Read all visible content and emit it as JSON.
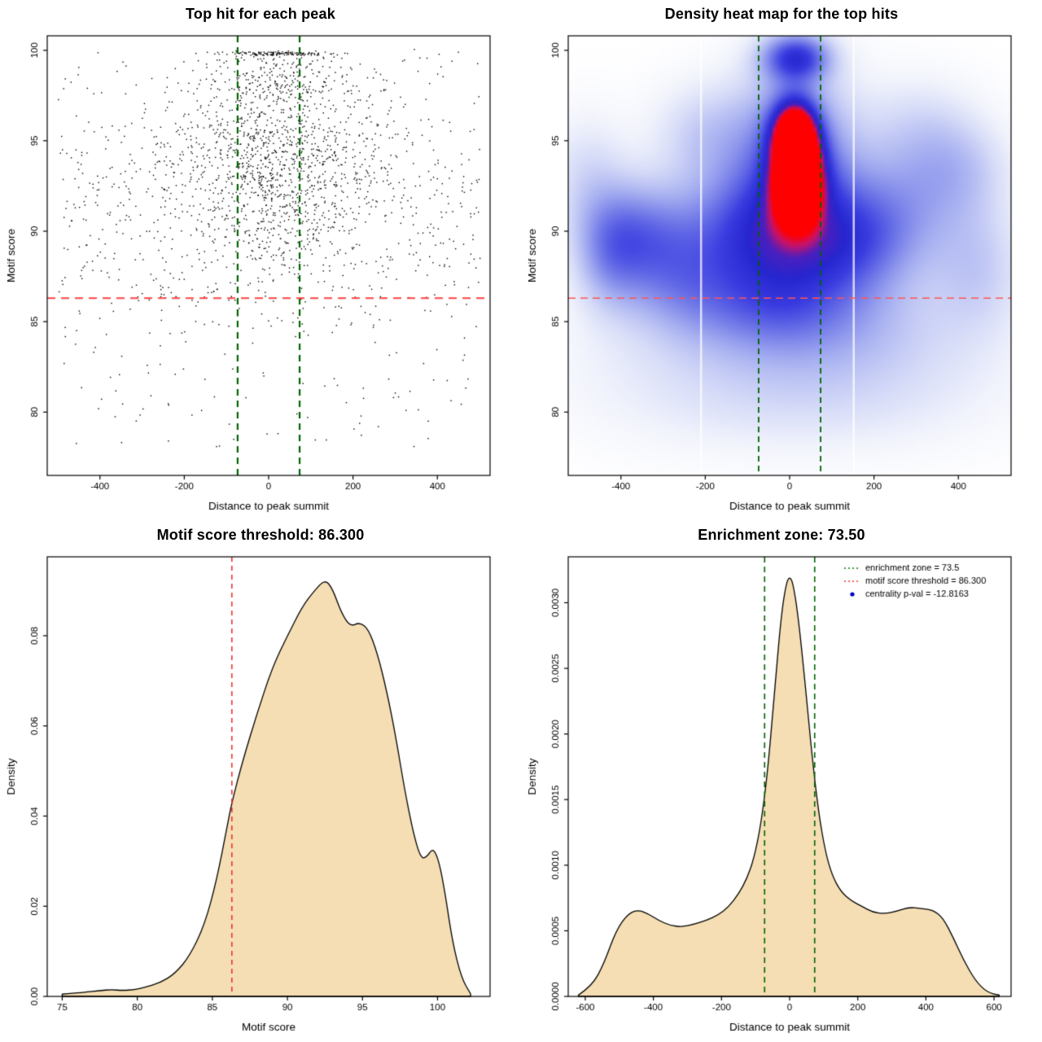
{
  "chart_data": [
    {
      "type": "scatter",
      "title": "Top hit for each peak",
      "xlabel": "Distance to peak summit",
      "ylabel": "Motif score",
      "xlim": [
        -525,
        525
      ],
      "ylim": [
        76.5,
        100.8
      ],
      "xticks": [
        -400,
        -200,
        0,
        200,
        400
      ],
      "xtick_labels": [
        "-400",
        "-200",
        "0",
        "200",
        "400"
      ],
      "yticks": [
        80,
        85,
        90,
        95,
        100
      ],
      "ytick_labels": [
        "80",
        "85",
        "90",
        "95",
        "100"
      ],
      "vlines": [
        {
          "x": [
            -73.5,
            73.5
          ],
          "color": "#006400",
          "width": 2.2,
          "dash": [
            8,
            6
          ]
        }
      ],
      "hlines": [
        {
          "y": [
            86.3
          ],
          "color": "#ff4444",
          "width": 2,
          "dash": [
            10,
            7
          ]
        }
      ],
      "points_spec": {
        "seed": 12345,
        "clip": {
          "xmin": -505,
          "xmax": 505,
          "ymin": 77,
          "ymax": 100.1
        },
        "components": [
          {
            "n": 850,
            "x": {
              "dist": "normal",
              "mean": 15,
              "sd": 115
            },
            "y": {
              "dist": "normal",
              "mean": 93,
              "sd": 2.7
            }
          },
          {
            "n": 320,
            "x": {
              "dist": "normal",
              "mean": 15,
              "sd": 160
            },
            "y": {
              "dist": "normal",
              "mean": 96.3,
              "sd": 2.0
            }
          },
          {
            "n": 620,
            "x": {
              "dist": "uniform",
              "min": -500,
              "max": 500
            },
            "y": {
              "dist": "normal",
              "mean": 91,
              "sd": 3.6
            }
          },
          {
            "n": 260,
            "x": {
              "dist": "uniform",
              "min": -500,
              "max": 500
            },
            "y": {
              "dist": "uniform",
              "min": 78,
              "max": 99.5
            }
          },
          {
            "n": 170,
            "x": {
              "dist": "normal",
              "mean": 20,
              "sd": 95
            },
            "y": {
              "dist": "uniform",
              "min": 97.6,
              "max": 100.0
            }
          },
          {
            "n": 120,
            "x": {
              "dist": "normal",
              "mean": 25,
              "sd": 75
            },
            "y": {
              "dist": "const",
              "value": 99.85,
              "jitter": 0.2
            }
          }
        ]
      }
    },
    {
      "type": "heatmap",
      "title": "Density heat map for the top hits",
      "xlabel": "Distance to peak summit",
      "ylabel": "Motif score",
      "xlim": [
        -525,
        525
      ],
      "ylim": [
        76.5,
        100.8
      ],
      "xticks": [
        -400,
        -200,
        0,
        200,
        400
      ],
      "xtick_labels": [
        "-400",
        "-200",
        "0",
        "200",
        "400"
      ],
      "yticks": [
        80,
        85,
        90,
        95,
        100
      ],
      "ytick_labels": [
        "80",
        "85",
        "90",
        "95",
        "100"
      ],
      "kernels": [
        [
          20,
          93.0,
          40,
          1.6,
          1.0
        ],
        [
          12,
          95.4,
          36,
          1.3,
          0.92
        ],
        [
          15,
          99.6,
          55,
          0.9,
          0.55
        ],
        [
          10,
          93.5,
          95,
          4.0,
          0.5
        ],
        [
          0,
          89.0,
          180,
          2.2,
          0.28
        ],
        [
          -120,
          90.5,
          110,
          2.5,
          0.3
        ],
        [
          150,
          89.5,
          100,
          2.2,
          0.25
        ],
        [
          -350,
          90.0,
          80,
          2.0,
          0.3
        ],
        [
          -430,
          88.8,
          60,
          2.2,
          0.26
        ],
        [
          -280,
          87.5,
          90,
          2.0,
          0.2
        ],
        [
          250,
          91.5,
          120,
          2.5,
          0.22
        ],
        [
          400,
          93.5,
          90,
          2.0,
          0.18
        ],
        [
          450,
          88.0,
          80,
          2.5,
          0.18
        ],
        [
          -80,
          86.0,
          150,
          1.8,
          0.22
        ],
        [
          100,
          85.0,
          200,
          2.0,
          0.15
        ],
        [
          -200,
          83.0,
          250,
          2.5,
          0.1
        ],
        [
          200,
          82.5,
          250,
          2.5,
          0.1
        ],
        [
          0,
          80.0,
          300,
          2.0,
          0.07
        ],
        [
          -480,
          93.0,
          70,
          2.5,
          0.15
        ],
        [
          -200,
          95.5,
          90,
          2.0,
          0.18
        ],
        [
          300,
          96.0,
          100,
          2.0,
          0.12
        ]
      ],
      "colormap": [
        [
          0,
          "#ffffff"
        ],
        [
          0.07,
          "#f2f4fc"
        ],
        [
          0.16,
          "#d8ddf8"
        ],
        [
          0.3,
          "#a8b1f1"
        ],
        [
          0.46,
          "#6f77e8"
        ],
        [
          0.62,
          "#3a3ce0"
        ],
        [
          0.74,
          "#2626cf"
        ],
        [
          0.84,
          "#4b1fbe"
        ],
        [
          0.92,
          "#c9136a"
        ],
        [
          1,
          "#ff0000"
        ]
      ],
      "white_stripes": [
        -210,
        152
      ],
      "vlines": [
        {
          "x": [
            -73.5,
            73.5
          ],
          "color": "#006400",
          "width": 1.8,
          "dash": [
            7,
            5
          ]
        }
      ],
      "hlines": [
        {
          "y": [
            86.3
          ],
          "color": "#ff5555",
          "width": 1.6,
          "dash": [
            9,
            6
          ]
        }
      ]
    },
    {
      "type": "density",
      "title": "Motif score threshold: 86.300",
      "xlabel": "Motif score",
      "ylabel": "Density",
      "xlim": [
        74,
        103.5
      ],
      "ylim": [
        0,
        0.0975
      ],
      "xticks": [
        75,
        80,
        85,
        90,
        95,
        100
      ],
      "xtick_labels": [
        "75",
        "80",
        "85",
        "90",
        "95",
        "100"
      ],
      "yticks": [
        0,
        0.02,
        0.04,
        0.06,
        0.08
      ],
      "ytick_labels": [
        "0.00",
        "0.02",
        "0.04",
        "0.06",
        "0.08"
      ],
      "fill": "#f5deb3",
      "vlines": [
        {
          "x": [
            86.3
          ],
          "color": "#ee3333",
          "width": 1.6,
          "dash": [
            6,
            5
          ]
        }
      ],
      "curve": {
        "x": [
          75.0,
          76.5,
          77.5,
          78.3,
          79.0,
          79.8,
          80.5,
          81.5,
          82.5,
          83.5,
          84.5,
          85.3,
          86.0,
          86.3,
          87.0,
          88.0,
          89.0,
          90.0,
          91.0,
          91.8,
          92.5,
          93.0,
          93.6,
          94.2,
          94.8,
          95.4,
          96.0,
          96.6,
          97.2,
          97.8,
          98.4,
          98.9,
          99.3,
          99.7,
          100.1,
          100.5,
          101.0,
          101.6,
          102.2
        ],
        "y": [
          0.0005,
          0.0009,
          0.0013,
          0.0015,
          0.0013,
          0.0015,
          0.002,
          0.003,
          0.005,
          0.009,
          0.016,
          0.026,
          0.038,
          0.043,
          0.052,
          0.063,
          0.073,
          0.08,
          0.0865,
          0.09,
          0.0925,
          0.0905,
          0.085,
          0.082,
          0.083,
          0.0815,
          0.076,
          0.068,
          0.058,
          0.046,
          0.036,
          0.0305,
          0.031,
          0.033,
          0.03,
          0.023,
          0.012,
          0.004,
          0.0006
        ]
      }
    },
    {
      "type": "density",
      "title": "Enrichment zone: 73.50",
      "xlabel": "Distance to peak summit",
      "ylabel": "Density",
      "xlim": [
        -650,
        650
      ],
      "ylim": [
        0,
        0.00335
      ],
      "xticks": [
        -600,
        -400,
        -200,
        0,
        200,
        400,
        600
      ],
      "xtick_labels": [
        "-600",
        "-400",
        "-200",
        "0",
        "200",
        "400",
        "600"
      ],
      "yticks": [
        0,
        0.0005,
        0.001,
        0.0015,
        0.002,
        0.0025,
        0.003
      ],
      "ytick_labels": [
        "0.0000",
        "0.0005",
        "0.0010",
        "0.0015",
        "0.0020",
        "0.0025",
        "0.0030"
      ],
      "fill": "#f5deb3",
      "vlines": [
        {
          "x": [
            -73.5,
            73.5
          ],
          "color": "#006400",
          "width": 1.6,
          "dash": [
            7,
            5
          ]
        }
      ],
      "curve": {
        "x": [
          -620,
          -580,
          -545,
          -510,
          -475,
          -445,
          -415,
          -385,
          -350,
          -315,
          -280,
          -245,
          -210,
          -180,
          -150,
          -125,
          -105,
          -85,
          -65,
          -45,
          -25,
          -10,
          0,
          10,
          25,
          45,
          65,
          85,
          105,
          125,
          150,
          180,
          210,
          245,
          280,
          315,
          350,
          385,
          420,
          450,
          480,
          510,
          545,
          580,
          615
        ],
        "y": [
          1e-05,
          8e-05,
          0.00025,
          0.0005,
          0.00063,
          0.00066,
          0.00063,
          0.00058,
          0.00054,
          0.00053,
          0.00055,
          0.00058,
          0.00062,
          0.00068,
          0.00078,
          0.0009,
          0.00105,
          0.0013,
          0.0017,
          0.0023,
          0.0029,
          0.00315,
          0.0032,
          0.00315,
          0.0029,
          0.0024,
          0.00185,
          0.0014,
          0.0011,
          0.00092,
          0.0008,
          0.00073,
          0.00069,
          0.00064,
          0.00063,
          0.00065,
          0.00068,
          0.00067,
          0.00066,
          0.0006,
          0.00045,
          0.00028,
          0.00012,
          3e-05,
          1e-05
        ]
      },
      "legend": {
        "items": [
          {
            "label": "enrichment zone = 73.5",
            "color": "#007700",
            "marker": "dotted-line"
          },
          {
            "label": "motif score threshold = 86.300",
            "color": "#ee3333",
            "marker": "dotted-line"
          },
          {
            "label": "centrality p-val = -12.8163",
            "color": "#0000cc",
            "marker": "dot"
          }
        ]
      }
    }
  ]
}
